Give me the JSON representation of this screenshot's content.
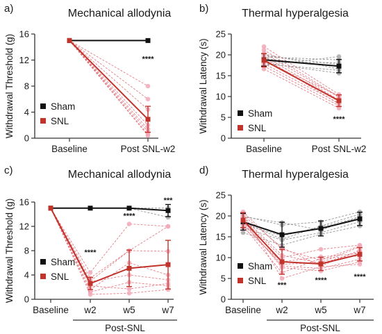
{
  "colors": {
    "sham": "#111111",
    "snl": "#c0342c",
    "snl_individual": "#e0707a",
    "snl_dot": "#f2a9b8",
    "sham_individual": "#8a8a8a",
    "sham_dot": "#a9a9a9",
    "axis": "#333333"
  },
  "chart_data": [
    {
      "panel": "a)",
      "type": "line",
      "title": "Mechanical allodynia",
      "xlabel": "",
      "ylabel": "Withdrawal Threshold (g)",
      "categories": [
        "Baseline",
        "Post SNL-w2"
      ],
      "ylim": [
        0,
        16
      ],
      "yticks": [
        "0",
        "4",
        "8",
        "12",
        "16"
      ],
      "series": [
        {
          "name": "Sham",
          "values": [
            15,
            15
          ],
          "err": [
            0,
            0
          ]
        },
        {
          "name": "SNL",
          "values": [
            15,
            2.9
          ],
          "err": [
            0,
            2.0
          ]
        }
      ],
      "individual": {
        "SNL": [
          [
            15,
            8
          ],
          [
            15,
            6
          ],
          [
            15,
            4.4
          ],
          [
            15,
            2.9
          ],
          [
            15,
            2.0
          ],
          [
            15,
            1.4
          ],
          [
            15,
            1.0
          ],
          [
            15,
            0.6
          ],
          [
            15,
            0.4
          ]
        ]
      },
      "significance": [
        {
          "label": "****",
          "at": 1,
          "y": 11.8
        }
      ],
      "legend_position": "bottom-left"
    },
    {
      "panel": "b)",
      "type": "line",
      "title": "Thermal hyperalgesia",
      "xlabel": "",
      "ylabel": "Withdrawal Latency (s)",
      "categories": [
        "Baseline",
        "Post SNL-w2"
      ],
      "ylim": [
        0,
        25
      ],
      "yticks": [
        "0",
        "5",
        "10",
        "15",
        "20",
        "25"
      ],
      "series": [
        {
          "name": "Sham",
          "values": [
            18.8,
            17.3
          ],
          "err": [
            1.5,
            1.6
          ]
        },
        {
          "name": "SNL",
          "values": [
            18.7,
            9.0
          ],
          "err": [
            1.6,
            1.4
          ]
        }
      ],
      "individual": {
        "Sham": [
          [
            17.4,
            19.6
          ],
          [
            18.3,
            18.1
          ],
          [
            19.1,
            17.2
          ],
          [
            20.2,
            16.6
          ],
          [
            18.0,
            15.6
          ],
          [
            19.5,
            18.8
          ],
          [
            17.8,
            16.3
          ],
          [
            19.8,
            17.7
          ]
        ],
        "SNL": [
          [
            22.0,
            10.5
          ],
          [
            20.4,
            9.8
          ],
          [
            19.7,
            9.2
          ],
          [
            18.9,
            8.8
          ],
          [
            17.9,
            8.4
          ],
          [
            17.3,
            7.8
          ],
          [
            16.6,
            7.2
          ],
          [
            21.2,
            9.9
          ],
          [
            18.5,
            10.2
          ],
          [
            19.3,
            8.2
          ]
        ]
      },
      "significance": [
        {
          "label": "****",
          "at": 1,
          "y": 4.0
        }
      ],
      "legend_position": "bottom-left"
    },
    {
      "panel": "c)",
      "type": "line",
      "title": "Mechanical allodynia",
      "xlabel": "",
      "ylabel": "Withdrawal Threshold (g)",
      "categories": [
        "Baseline",
        "w2",
        "w5",
        "w7"
      ],
      "group_label": "Post-SNL",
      "ylim": [
        0,
        16
      ],
      "yticks": [
        "0",
        "4",
        "8",
        "12",
        "16"
      ],
      "series": [
        {
          "name": "Sham",
          "values": [
            15,
            15,
            15,
            14.6
          ],
          "err": [
            0,
            0,
            0,
            1.0
          ]
        },
        {
          "name": "SNL",
          "values": [
            15,
            2.6,
            5.1,
            5.7
          ],
          "err": [
            0,
            1.0,
            3.0,
            4.0
          ]
        }
      ],
      "individual": {
        "Sham": [
          [
            15,
            15,
            15,
            15
          ],
          [
            15,
            15,
            15,
            13.5
          ]
        ],
        "SNL": [
          [
            15,
            4.4,
            12.4,
            12.0
          ],
          [
            15,
            1.2,
            2.8,
            2.2
          ],
          [
            15,
            3.5,
            8.0,
            7.9
          ],
          [
            15,
            2.2,
            1.7,
            2.6
          ],
          [
            15,
            1.6,
            6.0,
            4.0
          ],
          [
            15,
            2.9,
            4.0,
            3.2
          ],
          [
            15,
            0.8,
            1.0,
            1.6
          ],
          [
            15,
            3.0,
            8.0,
            12.0
          ]
        ]
      },
      "significance": [
        {
          "label": "****",
          "at": 1,
          "y": 7.3
        },
        {
          "label": "****",
          "at": 2,
          "y": 13.3
        },
        {
          "label": "***",
          "at": 3,
          "y": 15.9
        }
      ],
      "legend_position": "bottom-left"
    },
    {
      "panel": "d)",
      "type": "line",
      "title": "Thermal hyperalgesia",
      "xlabel": "",
      "ylabel": "Withdrawal Latency (s)",
      "categories": [
        "Baseline",
        "w2",
        "w5",
        "w7"
      ],
      "group_label": "Post-SNL",
      "ylim": [
        0,
        25
      ],
      "yticks": [
        "0",
        "5",
        "10",
        "15",
        "20",
        "25"
      ],
      "series": [
        {
          "name": "Sham",
          "values": [
            18.6,
            15.5,
            17.0,
            19.3
          ],
          "err": [
            2.0,
            3.0,
            1.8,
            1.6
          ]
        },
        {
          "name": "SNL",
          "values": [
            19.0,
            9.0,
            8.5,
            10.8
          ],
          "err": [
            1.8,
            3.0,
            1.6,
            1.6
          ]
        }
      ],
      "individual": {
        "Sham": [
          [
            16.0,
            13.0,
            15.6,
            17.6
          ],
          [
            18.0,
            15.2,
            17.4,
            19.6
          ],
          [
            20.0,
            17.8,
            18.6,
            21.0
          ],
          [
            17.2,
            14.2,
            16.0,
            18.6
          ],
          [
            19.8,
            18.4,
            16.6,
            19.9
          ],
          [
            18.6,
            14.4,
            17.6,
            20.4
          ]
        ],
        "SNL": [
          [
            21.0,
            12.0,
            9.4,
            12.8
          ],
          [
            19.6,
            10.6,
            8.6,
            11.4
          ],
          [
            18.4,
            8.0,
            7.4,
            9.6
          ],
          [
            17.6,
            6.4,
            9.8,
            10.4
          ],
          [
            20.2,
            12.4,
            8.0,
            11.8
          ],
          [
            18.9,
            7.6,
            6.8,
            9.0
          ],
          [
            17.2,
            9.0,
            10.2,
            11.0
          ],
          [
            20.6,
            5.0,
            7.8,
            8.4
          ],
          [
            19.2,
            10.0,
            12.0,
            13.0
          ],
          [
            18.0,
            8.4,
            8.8,
            12.6
          ]
        ]
      },
      "significance": [
        {
          "label": "***",
          "at": 1,
          "y": 2.8
        },
        {
          "label": "****",
          "at": 2,
          "y": 4.0
        },
        {
          "label": "****",
          "at": 3,
          "y": 4.8
        }
      ],
      "legend_position": "bottom-left"
    }
  ]
}
